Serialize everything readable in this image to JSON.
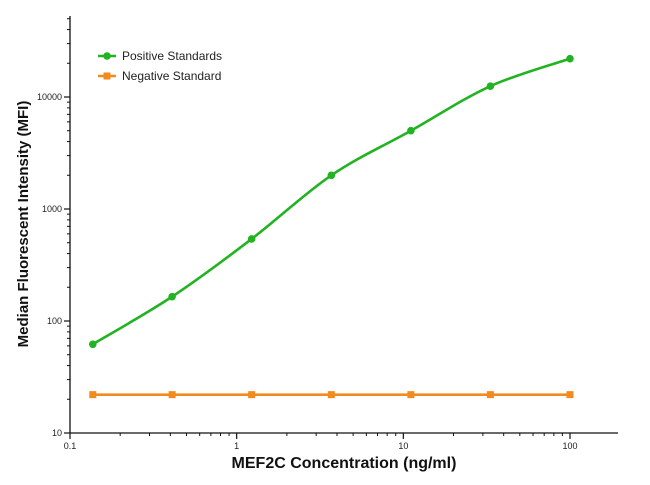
{
  "chart_data": {
    "type": "line",
    "xscale": "log",
    "yscale": "log",
    "xlabel": "MEF2C Concentration (ng/ml)",
    "ylabel": "Median  Fluorescent Intensity  (MFI)",
    "xlim": [
      0.1,
      200
    ],
    "ylim": [
      10,
      60000
    ],
    "x_ticks": [
      0.1,
      1,
      10,
      100
    ],
    "x_tick_labels": [
      "0.1",
      "1",
      "10",
      "100"
    ],
    "y_ticks": [
      10,
      100,
      1000,
      10000
    ],
    "y_tick_labels": [
      "10",
      "100",
      "1000",
      "10000"
    ],
    "grid": false,
    "legend_position": "top-left",
    "series": [
      {
        "name": "Positive Standards",
        "color": "#22b322",
        "marker": "circle",
        "x": [
          0.137,
          0.41,
          1.23,
          3.7,
          11.1,
          33.3,
          100
        ],
        "y": [
          62,
          165,
          540,
          2000,
          5000,
          12500,
          22000
        ]
      },
      {
        "name": "Negative Standard",
        "color": "#f28a1e",
        "marker": "square",
        "x": [
          0.137,
          0.41,
          1.23,
          3.7,
          11.1,
          33.3,
          100
        ],
        "y": [
          22,
          22,
          22,
          22,
          22,
          22,
          22
        ]
      }
    ]
  }
}
